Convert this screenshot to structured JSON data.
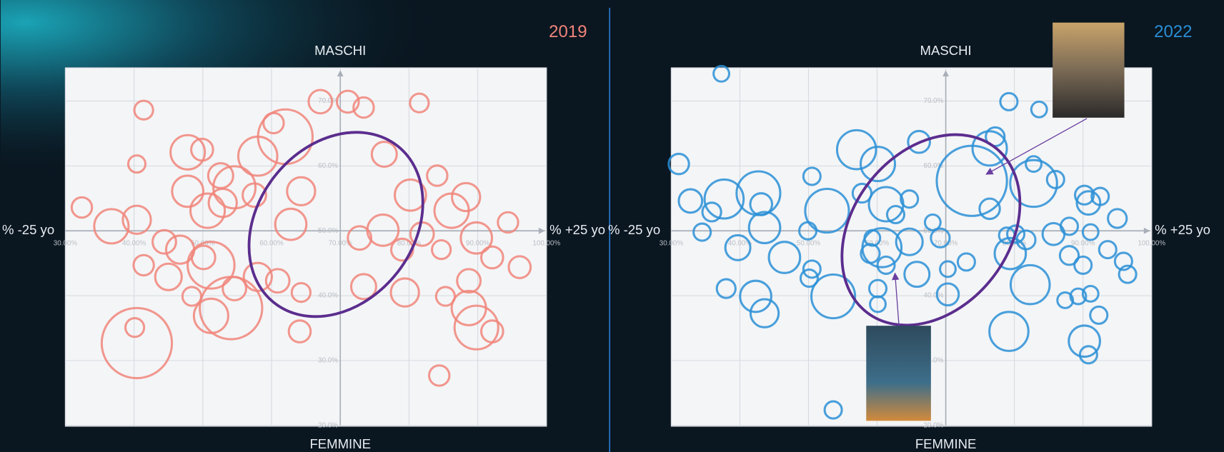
{
  "chart_data": [
    {
      "type": "bubble",
      "title": "2019",
      "color": "#f0857a",
      "y_label_top": "MASCHI",
      "y_label_bottom": "FEMMINE",
      "x_label_left": "% -25 yo",
      "x_label_right": "% +25 yo",
      "xlim": [
        30,
        100
      ],
      "ylim": [
        20,
        75
      ],
      "origin": [
        70,
        50
      ],
      "grid": true,
      "xticks": [
        {
          "value": 30,
          "label": "30.00%"
        },
        {
          "value": 40,
          "label": "40.00%"
        },
        {
          "value": 50,
          "label": "50.00%"
        },
        {
          "value": 60,
          "label": "60.00%"
        },
        {
          "value": 70,
          "label": "70.00%"
        },
        {
          "value": 80,
          "label": "80.00%"
        },
        {
          "value": 90,
          "label": "90.00%"
        },
        {
          "value": 100,
          "label": "100.00%"
        }
      ],
      "yticks": [
        {
          "value": 20,
          "label": "20.0%"
        },
        {
          "value": 30,
          "label": "30.0%"
        },
        {
          "value": 40,
          "label": "40.0%"
        },
        {
          "value": 50,
          "label": "50.0%"
        },
        {
          "value": 60,
          "label": "60.0%"
        },
        {
          "value": 70,
          "label": "70.0%"
        }
      ],
      "x": [
        41.4,
        40.4,
        32.4,
        36.7,
        40.4,
        44.4,
        41.4,
        45.0,
        47.8,
        47.8,
        49.9,
        52.6,
        50.7,
        52.9,
        54.6,
        57.5,
        58.0,
        60.3,
        62.0,
        64.3,
        62.8,
        67.1,
        71.1,
        73.4,
        81.5,
        76.4,
        51.2,
        54.1,
        54.6,
        58.0,
        60.9,
        64.3,
        48.4,
        51.2,
        46.7,
        50.1,
        40.4,
        40.1,
        64.1,
        72.8,
        76.2,
        80.2,
        81.9,
        79.4,
        73.4,
        84.1,
        88.3,
        84.7,
        89.8,
        92.1,
        94.4,
        96.1,
        88.7,
        85.3,
        88.7,
        89.8,
        92.1,
        84.4,
        79.0,
        86.2
      ],
      "values": [
        68.6,
        60.3,
        53.6,
        50.7,
        51.7,
        48.3,
        44.7,
        42.9,
        56.1,
        62.1,
        62.5,
        58.5,
        53.1,
        54.3,
        56.7,
        55.5,
        61.5,
        66.6,
        64.5,
        56.1,
        51.0,
        69.9,
        69.9,
        69.0,
        69.7,
        61.8,
        44.7,
        38.1,
        41.1,
        42.9,
        42.3,
        40.5,
        39.9,
        36.9,
        47.1,
        45.9,
        32.7,
        35.1,
        34.5,
        48.9,
        50.1,
        55.5,
        49.5,
        40.5,
        41.4,
        58.5,
        55.2,
        47.1,
        48.9,
        45.9,
        51.3,
        44.4,
        42.3,
        39.9,
        38.1,
        35.1,
        34.5,
        27.7,
        47.1,
        53.1
      ],
      "sizes": [
        12,
        11,
        13,
        22,
        18,
        15,
        13,
        17,
        20,
        22,
        14,
        16,
        22,
        18,
        27,
        15,
        25,
        13,
        35,
        18,
        20,
        15,
        14,
        13,
        12,
        16,
        30,
        40,
        15,
        18,
        15,
        12,
        12,
        22,
        18,
        15,
        45,
        12,
        14,
        15,
        20,
        20,
        15,
        18,
        16,
        13,
        18,
        12,
        20,
        14,
        13,
        14,
        15,
        12,
        22,
        28,
        14,
        13,
        14,
        22
      ]
    },
    {
      "type": "bubble",
      "title": "2022",
      "color": "#2a8fd6",
      "y_label_top": "MASCHI",
      "y_label_bottom": "FEMMINE",
      "x_label_left": "% -25 yo",
      "x_label_right": "% +25 yo",
      "xlim": [
        30,
        100
      ],
      "ylim": [
        20,
        75
      ],
      "origin": [
        70,
        50
      ],
      "grid": true,
      "xticks": [
        {
          "value": 30,
          "label": "30.00%"
        },
        {
          "value": 40,
          "label": "40.00%"
        },
        {
          "value": 50,
          "label": "50.00%"
        },
        {
          "value": 60,
          "label": "60.00%"
        },
        {
          "value": 70,
          "label": "70.00%"
        },
        {
          "value": 80,
          "label": "80.00%"
        },
        {
          "value": 90,
          "label": "90.00%"
        },
        {
          "value": 100,
          "label": "100.00%"
        }
      ],
      "yticks": [
        {
          "value": 20,
          "label": "20.0%"
        },
        {
          "value": 30,
          "label": "30.0%"
        },
        {
          "value": 40,
          "label": "40.0%"
        },
        {
          "value": 50,
          "label": "50.0%"
        },
        {
          "value": 60,
          "label": "60.0%"
        },
        {
          "value": 70,
          "label": "70.0%"
        }
      ],
      "x": [
        37.3,
        31.1,
        32.8,
        35.9,
        34.5,
        37.7,
        39.7,
        42.7,
        43.1,
        43.6,
        46.5,
        49.9,
        50.5,
        52.7,
        57.0,
        60.1,
        57.8,
        61.3,
        62.7,
        64.7,
        66.1,
        64.7,
        60.7,
        59.3,
        61.3,
        59.0,
        60.1,
        60.1,
        65.8,
        68.1,
        69.2,
        70.3,
        70.3,
        73.0,
        73.8,
        76.4,
        76.4,
        77.2,
        79.2,
        83.6,
        82.8,
        86.0,
        82.8,
        79.4,
        82.3,
        80.2,
        81.7,
        85.7,
        88.0,
        90.2,
        90.8,
        92.5,
        95.0,
        91.1,
        87.4,
        89.3,
        91.1,
        92.3,
        93.6,
        95.9,
        96.5,
        90.0,
        79.2,
        90.2,
        90.8,
        53.6,
        50.5,
        50.1,
        38.0,
        42.3,
        43.6,
        53.6,
        78.9,
        88.0
      ],
      "values": [
        74.2,
        60.3,
        54.6,
        52.9,
        49.8,
        54.9,
        47.4,
        55.8,
        54.1,
        50.5,
        45.9,
        50.0,
        58.4,
        53.1,
        62.5,
        60.3,
        55.8,
        54.1,
        52.5,
        54.9,
        63.7,
        48.3,
        47.4,
        48.9,
        44.7,
        46.5,
        41.1,
        38.7,
        43.3,
        51.3,
        48.9,
        44.1,
        40.2,
        45.2,
        57.7,
        62.7,
        53.4,
        64.5,
        69.9,
        68.7,
        60.3,
        57.9,
        57.3,
        46.5,
        41.7,
        49.5,
        48.6,
        49.5,
        46.2,
        55.5,
        54.3,
        55.3,
        51.9,
        49.8,
        39.3,
        39.9,
        40.3,
        37.0,
        47.1,
        45.3,
        43.3,
        44.7,
        34.5,
        33.0,
        30.9,
        39.9,
        44.1,
        42.7,
        41.1,
        39.9,
        37.3,
        22.4,
        49.3,
        50.7
      ],
      "sizes": [
        10,
        13,
        15,
        12,
        11,
        25,
        16,
        28,
        14,
        20,
        20,
        11,
        11,
        28,
        25,
        22,
        12,
        22,
        11,
        11,
        14,
        17,
        25,
        10,
        11,
        12,
        11,
        10,
        16,
        10,
        12,
        10,
        14,
        11,
        45,
        22,
        13,
        12,
        11,
        10,
        10,
        11,
        30,
        20,
        25,
        11,
        12,
        14,
        12,
        12,
        15,
        11,
        12,
        10,
        10,
        10,
        10,
        11,
        11,
        11,
        11,
        11,
        25,
        20,
        11,
        28,
        11,
        11,
        12,
        20,
        18,
        11,
        10,
        11
      ]
    }
  ]
}
